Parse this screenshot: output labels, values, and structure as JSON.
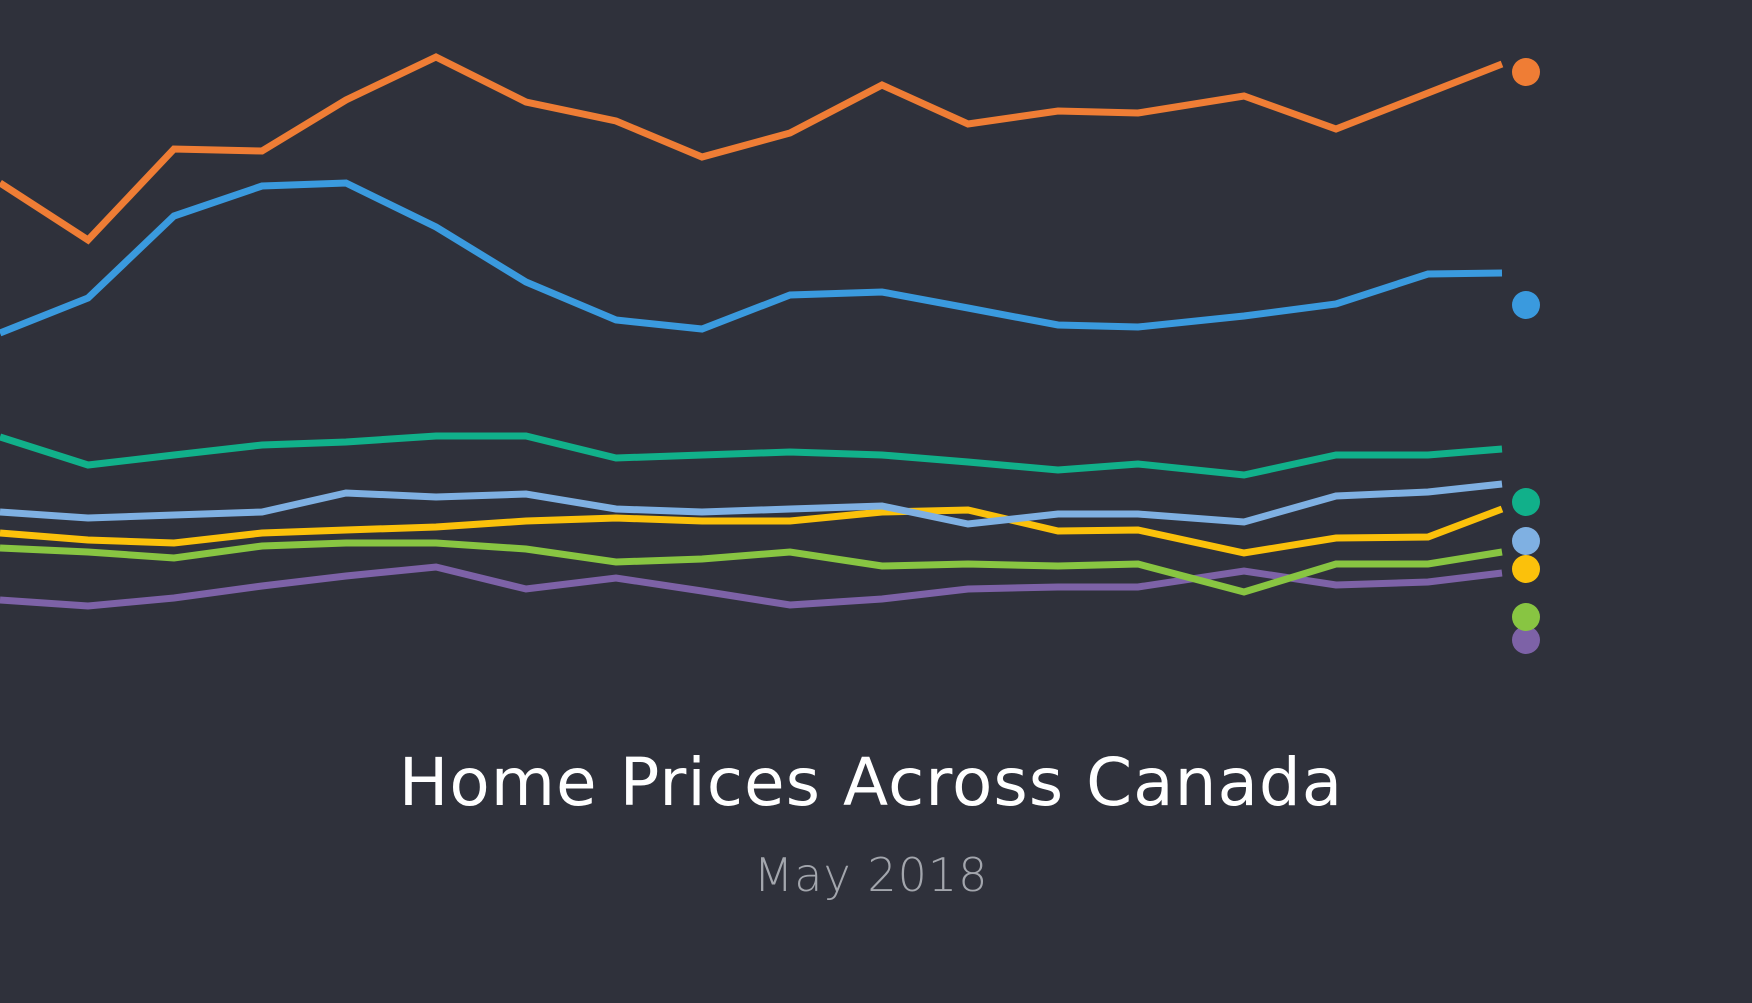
{
  "title": "Home Prices Across Canada",
  "subtitle": "May 2018",
  "chart_data": {
    "type": "line",
    "title": "Home Prices Across Canada",
    "subtitle": "May 2018",
    "xlabel": "",
    "ylabel": "",
    "grid": false,
    "legend": "none",
    "x": [
      1,
      2,
      3,
      4,
      5,
      6,
      7,
      8,
      9,
      10,
      11,
      12,
      13,
      14,
      15,
      16,
      17,
      18
    ],
    "series": [
      {
        "color": "#ef7d35",
        "values": [
          183,
          240,
          149,
          151,
          100,
          57,
          102,
          121,
          157,
          133,
          85,
          124,
          111,
          113,
          96,
          129,
          93,
          64
        ]
      },
      {
        "color": "#3a9ade",
        "values": [
          333,
          298,
          216,
          186,
          183,
          227,
          282,
          320,
          329,
          295,
          292,
          308,
          325,
          327,
          316,
          304,
          274,
          273
        ]
      },
      {
        "color": "#11b08a",
        "values": [
          437,
          465,
          455,
          445,
          442,
          436,
          436,
          458,
          455,
          452,
          455,
          462,
          470,
          464,
          475,
          455,
          455,
          449
        ]
      },
      {
        "color": "#7fb0e2",
        "values": [
          512,
          518,
          515,
          512,
          493,
          497,
          494,
          509,
          512,
          509,
          506,
          524,
          514,
          514,
          522,
          496,
          492,
          484
        ]
      },
      {
        "color": "#fbc10b",
        "values": [
          533,
          540,
          543,
          533,
          530,
          527,
          521,
          518,
          521,
          521,
          512,
          510,
          531,
          530,
          553,
          538,
          537,
          509
        ]
      },
      {
        "color": "#88c542",
        "values": [
          548,
          552,
          558,
          546,
          543,
          543,
          549,
          562,
          559,
          552,
          566,
          564,
          566,
          564,
          592,
          564,
          564,
          552
        ]
      },
      {
        "color": "#7d62a7",
        "values": [
          600,
          606,
          598,
          586,
          576,
          567,
          589,
          578,
          591,
          605,
          599,
          589,
          587,
          587,
          571,
          585,
          582,
          573
        ]
      }
    ]
  }
}
